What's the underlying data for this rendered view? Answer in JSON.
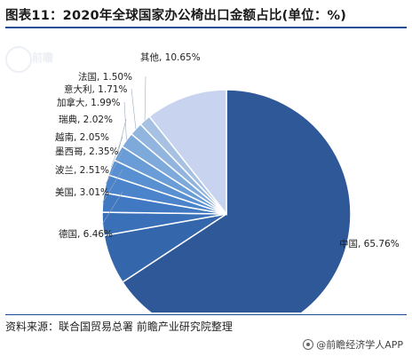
{
  "title": "图表11：2020年全球国家办公椅出口金额占比(单位：%)",
  "source": "资料来源：联合国贸易总署 前瞻产业研究院整理",
  "brand": "@前瞻经济学人APP",
  "watermark": "前瞻",
  "chart_data": {
    "type": "pie",
    "title": "图表11：2020年全球国家办公椅出口金额占比(单位：%)",
    "unit": "%",
    "slices": [
      {
        "label": "中国",
        "value": 65.76,
        "display": "中国, 65.76%",
        "color": "#2e5897"
      },
      {
        "label": "德国",
        "value": 6.46,
        "display": "德国, 6.46%",
        "color": "#3466ac"
      },
      {
        "label": "美国",
        "value": 3.01,
        "display": "美国, 3.01%",
        "color": "#3a70b8"
      },
      {
        "label": "波兰",
        "value": 2.51,
        "display": "波兰, 2.51%",
        "color": "#4079c2"
      },
      {
        "label": "墨西哥",
        "value": 2.35,
        "display": "墨西哥, 2.35%",
        "color": "#4b84ca"
      },
      {
        "label": "越南",
        "value": 2.05,
        "display": "越南, 2.05%",
        "color": "#5890d2"
      },
      {
        "label": "瑞典",
        "value": 2.02,
        "display": "瑞典, 2.02%",
        "color": "#6a9cd7"
      },
      {
        "label": "加拿大",
        "value": 1.99,
        "display": "加拿大, 1.99%",
        "color": "#7ea9db"
      },
      {
        "label": "意大利",
        "value": 1.71,
        "display": "意大利, 1.71%",
        "color": "#92b5df"
      },
      {
        "label": "法国",
        "value": 1.5,
        "display": "法国, 1.50%",
        "color": "#a7c1e2"
      },
      {
        "label": "其他",
        "value": 10.65,
        "display": "其他, 10.65%",
        "color": "#c7d3ef"
      }
    ]
  }
}
